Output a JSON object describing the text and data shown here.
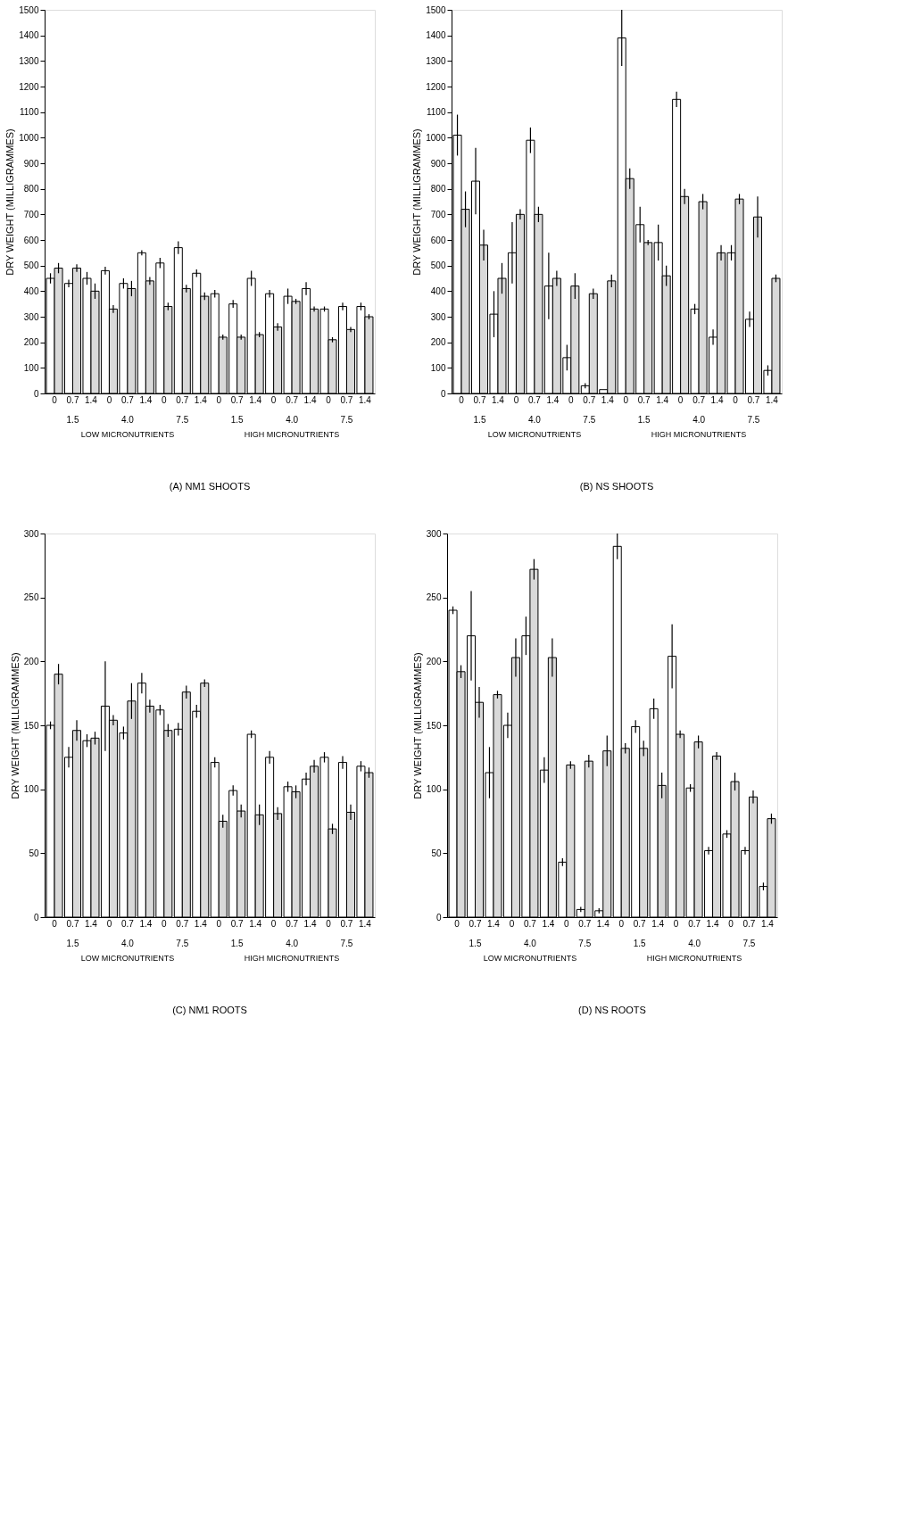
{
  "chart_data": [
    {
      "type": "bar",
      "title": "(A) NM1 SHOOTS",
      "ylabel": "DRY WEIGHT (MILLIGRAMMES)",
      "categories": [
        "0",
        "0.7",
        "1.4",
        "0",
        "0.7",
        "1.4",
        "0",
        "0.7",
        "1.4",
        "0",
        "0.7",
        "1.4",
        "0",
        "0.7",
        "1.4",
        "0",
        "0.7",
        "1.4"
      ],
      "annotations": [
        "1.5",
        "4.0",
        "7.5",
        "1.5",
        "4.0",
        "7.5",
        "LOW MICRONUTRIENTS",
        "HIGH MICRONUTRIENTS"
      ],
      "series": [
        {
          "color": "#ffffff",
          "values": [
            450,
            430,
            450,
            480,
            430,
            550,
            510,
            570,
            470,
            390,
            350,
            450,
            390,
            380,
            410,
            330,
            340,
            340
          ],
          "errors": [
            20,
            15,
            25,
            15,
            20,
            10,
            20,
            25,
            15,
            15,
            15,
            30,
            15,
            30,
            25,
            10,
            15,
            15
          ]
        },
        {
          "color": "#d9d9d9",
          "values": [
            490,
            490,
            400,
            330,
            410,
            440,
            340,
            410,
            380,
            220,
            220,
            230,
            260,
            360,
            330,
            210,
            250,
            300
          ],
          "errors": [
            20,
            15,
            30,
            15,
            30,
            15,
            15,
            15,
            15,
            10,
            10,
            10,
            15,
            10,
            10,
            10,
            10,
            10
          ]
        }
      ],
      "ylim": [
        0,
        1500
      ],
      "yticks": [
        0,
        100,
        200,
        300,
        400,
        500,
        600,
        700,
        800,
        900,
        1000,
        1100,
        1200,
        1300,
        1400,
        1500
      ],
      "grid": false
    },
    {
      "type": "bar",
      "title": "(B) NS SHOOTS",
      "ylabel": "DRY WEIGHT (MILLIGRAMMES)",
      "categories": [
        "0",
        "0.7",
        "1.4",
        "0",
        "0.7",
        "1.4",
        "0",
        "0.7",
        "1.4",
        "0",
        "0.7",
        "1.4",
        "0",
        "0.7",
        "1.4",
        "0",
        "0.7",
        "1.4"
      ],
      "annotations": [
        "1.5",
        "4.0",
        "7.5",
        "1.5",
        "4.0",
        "7.5",
        "LOW MICRONUTRIENTS",
        "HIGH MICRONUTRIENTS"
      ],
      "series": [
        {
          "color": "#ffffff",
          "values": [
            1010,
            830,
            310,
            550,
            990,
            420,
            140,
            30,
            15,
            1390,
            660,
            590,
            1150,
            330,
            220,
            550,
            290,
            90
          ],
          "errors": [
            80,
            130,
            90,
            120,
            50,
            130,
            50,
            10,
            null,
            110,
            70,
            70,
            30,
            20,
            30,
            30,
            30,
            20
          ]
        },
        {
          "color": "#d9d9d9",
          "values": [
            720,
            580,
            450,
            700,
            700,
            450,
            420,
            390,
            440,
            840,
            590,
            460,
            770,
            750,
            550,
            760,
            690,
            450
          ],
          "errors": [
            70,
            60,
            60,
            20,
            30,
            30,
            50,
            20,
            25,
            40,
            10,
            40,
            30,
            30,
            30,
            20,
            80,
            15
          ]
        }
      ],
      "ylim": [
        0,
        1500
      ],
      "yticks": [
        0,
        100,
        200,
        300,
        400,
        500,
        600,
        700,
        800,
        900,
        1000,
        1100,
        1200,
        1300,
        1400,
        1500
      ],
      "grid": false
    },
    {
      "type": "bar",
      "title": "(C) NM1 ROOTS",
      "ylabel": "DRY WEIGHT (MILLIGRAMMES)",
      "categories": [
        "0",
        "0.7",
        "1.4",
        "0",
        "0.7",
        "1.4",
        "0",
        "0.7",
        "1.4",
        "0",
        "0.7",
        "1.4",
        "0",
        "0.7",
        "1.4",
        "0",
        "0.7",
        "1.4"
      ],
      "annotations": [
        "1.5",
        "4.0",
        "7.5",
        "1.5",
        "4.0",
        "7.5",
        "LOW MICRONUTRIENTS",
        "HIGH MICRONUTRIENTS"
      ],
      "series": [
        {
          "color": "#ffffff",
          "values": [
            150,
            125,
            138,
            165,
            144,
            183,
            162,
            147,
            161,
            121,
            99,
            143,
            125,
            102,
            108,
            125,
            121,
            118
          ],
          "errors": [
            3,
            8,
            5,
            35,
            5,
            8,
            4,
            5,
            5,
            4,
            4,
            3,
            5,
            4,
            5,
            4,
            5,
            4
          ]
        },
        {
          "color": "#d9d9d9",
          "values": [
            190,
            146,
            140,
            154,
            169,
            165,
            146,
            176,
            183,
            75,
            83,
            80,
            81,
            98,
            118,
            69,
            82,
            113
          ],
          "errors": [
            8,
            8,
            5,
            4,
            14,
            5,
            5,
            5,
            3,
            5,
            5,
            8,
            5,
            5,
            5,
            4,
            6,
            4
          ]
        }
      ],
      "ylim": [
        0,
        300
      ],
      "yticks": [
        0,
        50,
        100,
        150,
        200,
        250,
        300
      ],
      "grid": false
    },
    {
      "type": "bar",
      "title": "(D) NS ROOTS",
      "ylabel": "DRY WEIGHT (MILLIGRAMMES)",
      "categories": [
        "0",
        "0.7",
        "1.4",
        "0",
        "0.7",
        "1.4",
        "0",
        "0.7",
        "1.4",
        "0",
        "0.7",
        "1.4",
        "0",
        "0.7",
        "1.4",
        "0",
        "0.7",
        "1.4"
      ],
      "annotations": [
        "1.5",
        "4.0",
        "7.5",
        "1.5",
        "4.0",
        "7.5",
        "LOW MICRONUTRIENTS",
        "HIGH MICRONUTRIENTS"
      ],
      "series": [
        {
          "color": "#ffffff",
          "values": [
            240,
            220,
            113,
            150,
            220,
            115,
            43,
            6,
            5,
            290,
            149,
            163,
            204,
            101,
            52,
            65,
            52,
            24
          ],
          "errors": [
            3,
            35,
            20,
            10,
            15,
            10,
            3,
            2,
            2,
            10,
            5,
            8,
            25,
            3,
            3,
            3,
            3,
            3
          ]
        },
        {
          "color": "#d9d9d9",
          "values": [
            192,
            168,
            174,
            203,
            272,
            203,
            119,
            122,
            130,
            132,
            132,
            103,
            143,
            137,
            126,
            106,
            94,
            77
          ],
          "errors": [
            5,
            12,
            3,
            15,
            8,
            15,
            3,
            5,
            12,
            4,
            6,
            10,
            3,
            5,
            3,
            7,
            5,
            4
          ]
        }
      ],
      "ylim": [
        0,
        300
      ],
      "yticks": [
        0,
        50,
        100,
        150,
        200,
        250,
        300
      ],
      "grid": false
    }
  ]
}
